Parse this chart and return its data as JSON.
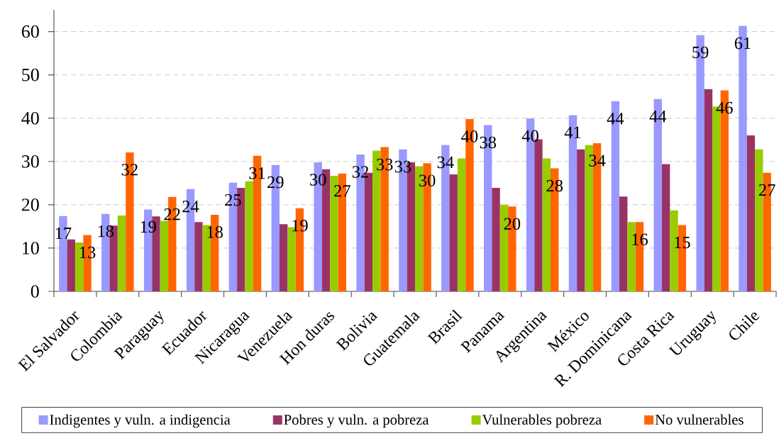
{
  "chart_data": {
    "type": "bar",
    "categories": [
      "El Salvador",
      "Colombia",
      "Paraguay",
      "Ecuador",
      "Nicaragua",
      "Venezuela",
      "Hon duras",
      "Bolivia",
      "Guatemala",
      "Brasil",
      "Panama",
      "Argentina",
      "México",
      "R. Dominicana",
      "Costa Rica",
      "Uruguay",
      "Chile"
    ],
    "series": [
      {
        "name": "Indigentes y vuln. a indigencia",
        "color": "#9999ff",
        "values": [
          17.4,
          17.9,
          18.9,
          23.6,
          25.1,
          29.2,
          29.8,
          31.6,
          32.8,
          33.8,
          38.4,
          39.9,
          40.7,
          43.9,
          44.4,
          59.2,
          61.3
        ],
        "value_labels": [
          "17",
          "18",
          "19",
          "24",
          "25",
          "29",
          "30",
          "32",
          "33",
          "34",
          "38",
          "40",
          "41",
          "44",
          "44",
          "59",
          "61"
        ]
      },
      {
        "name": "Pobres y vuln. a pobreza",
        "color": "#993366",
        "values": [
          12.0,
          15.2,
          17.3,
          16.0,
          23.9,
          15.5,
          28.2,
          27.4,
          29.8,
          27.0,
          23.9,
          35.1,
          32.8,
          21.9,
          29.4,
          46.7,
          36.0
        ]
      },
      {
        "name": "Vulnerables pobreza",
        "color": "#99cc00",
        "values": [
          11.3,
          17.5,
          16.3,
          15.3,
          25.4,
          14.8,
          26.7,
          32.5,
          28.9,
          30.7,
          20.0,
          30.7,
          33.8,
          16.0,
          18.7,
          42.7,
          32.8
        ]
      },
      {
        "name": "No vulnerables",
        "color": "#ff6600",
        "values": [
          13.0,
          32.1,
          21.8,
          17.7,
          31.3,
          19.2,
          27.2,
          33.3,
          29.6,
          39.8,
          19.6,
          28.4,
          34.2,
          16.0,
          15.3,
          46.4,
          27.4
        ],
        "value_labels": [
          "13",
          "32",
          "22",
          "18",
          "31",
          "19",
          "27",
          "33",
          "30",
          "40",
          "20",
          "28",
          "34",
          "16",
          "15",
          "46",
          "27"
        ]
      }
    ],
    "ylim": [
      0,
      65
    ],
    "yticks": [
      0,
      10,
      20,
      30,
      40,
      50,
      60
    ],
    "grid": "y",
    "legend": "bottom"
  }
}
